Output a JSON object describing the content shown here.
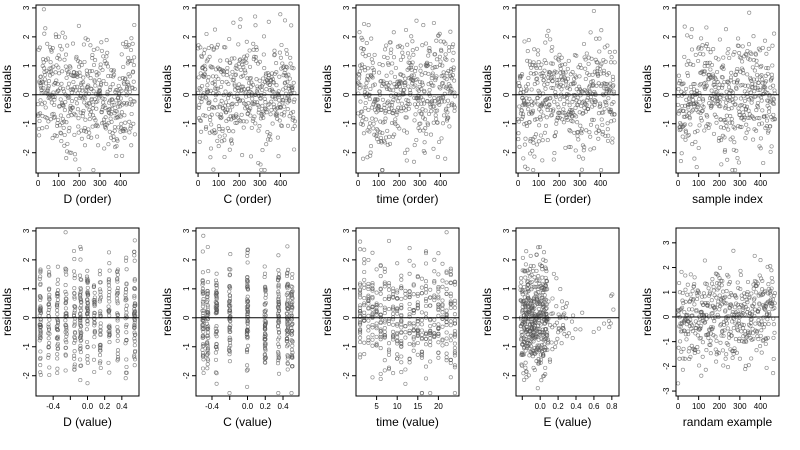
{
  "figure": {
    "point_color": "#555555",
    "zero_line_color": "#000000"
  },
  "chart_data": [
    {
      "type": "scatter",
      "xlabel": "D (order)",
      "ylabel": "residuals",
      "xlim": [
        -10,
        490
      ],
      "ylim": [
        -2.7,
        3.1
      ],
      "xticks": [
        {
          "v": 0,
          "t": "0"
        },
        {
          "v": 100,
          "t": "100"
        },
        {
          "v": 200,
          "t": "200"
        },
        {
          "v": 300,
          "t": "300"
        },
        {
          "v": 400,
          "t": "400"
        }
      ],
      "yticks": [
        {
          "v": -2,
          "t": "-2"
        },
        {
          "v": -1,
          "t": "-1"
        },
        {
          "v": 0,
          "t": "0"
        },
        {
          "v": 1,
          "t": "1"
        },
        {
          "v": 2,
          "t": "2"
        },
        {
          "v": 3,
          "t": "3"
        }
      ],
      "zero_line": 0,
      "points": {
        "n": 480,
        "x": "order 0-470",
        "y": "residuals, approx. -2.6 to 2.9"
      }
    },
    {
      "type": "scatter",
      "xlabel": "C (order)",
      "ylabel": "residuals",
      "xlim": [
        -10,
        490
      ],
      "ylim": [
        -2.7,
        3.1
      ],
      "xticks": [
        {
          "v": 0,
          "t": "0"
        },
        {
          "v": 100,
          "t": "100"
        },
        {
          "v": 200,
          "t": "200"
        },
        {
          "v": 300,
          "t": "300"
        },
        {
          "v": 400,
          "t": "400"
        }
      ],
      "yticks": [
        {
          "v": -2,
          "t": "-2"
        },
        {
          "v": -1,
          "t": "-1"
        },
        {
          "v": 0,
          "t": "0"
        },
        {
          "v": 1,
          "t": "1"
        },
        {
          "v": 2,
          "t": "2"
        },
        {
          "v": 3,
          "t": "3"
        }
      ],
      "zero_line": 0,
      "points": {
        "n": 480,
        "x": "order 0-470",
        "y": "residuals, approx. -2.6 to 2.9"
      }
    },
    {
      "type": "scatter",
      "xlabel": "time (order)",
      "ylabel": "residuals",
      "xlim": [
        -10,
        490
      ],
      "ylim": [
        -2.7,
        3.1
      ],
      "xticks": [
        {
          "v": 0,
          "t": "0"
        },
        {
          "v": 100,
          "t": "100"
        },
        {
          "v": 200,
          "t": "200"
        },
        {
          "v": 300,
          "t": "300"
        },
        {
          "v": 400,
          "t": "400"
        }
      ],
      "yticks": [
        {
          "v": -2,
          "t": "-2"
        },
        {
          "v": -1,
          "t": "-1"
        },
        {
          "v": 0,
          "t": "0"
        },
        {
          "v": 1,
          "t": "1"
        },
        {
          "v": 2,
          "t": "2"
        },
        {
          "v": 3,
          "t": "3"
        }
      ],
      "zero_line": 0,
      "points": {
        "n": 480,
        "x": "order 0-470",
        "y": "residuals, approx. -2.6 to 2.9"
      }
    },
    {
      "type": "scatter",
      "xlabel": "E (order)",
      "ylabel": "residuals",
      "xlim": [
        -10,
        490
      ],
      "ylim": [
        -2.7,
        3.1
      ],
      "xticks": [
        {
          "v": 0,
          "t": "0"
        },
        {
          "v": 100,
          "t": "100"
        },
        {
          "v": 200,
          "t": "200"
        },
        {
          "v": 300,
          "t": "300"
        },
        {
          "v": 400,
          "t": "400"
        }
      ],
      "yticks": [
        {
          "v": -2,
          "t": "-2"
        },
        {
          "v": -1,
          "t": "-1"
        },
        {
          "v": 0,
          "t": "0"
        },
        {
          "v": 1,
          "t": "1"
        },
        {
          "v": 2,
          "t": "2"
        },
        {
          "v": 3,
          "t": "3"
        }
      ],
      "zero_line": 0,
      "points": {
        "n": 480,
        "x": "order 0-470",
        "y": "residuals, approx. -2.6 to 2.9"
      }
    },
    {
      "type": "scatter",
      "xlabel": "sample index",
      "ylabel": "residuals",
      "xlim": [
        -10,
        490
      ],
      "ylim": [
        -2.7,
        3.1
      ],
      "xticks": [
        {
          "v": 0,
          "t": "0"
        },
        {
          "v": 100,
          "t": "100"
        },
        {
          "v": 200,
          "t": "200"
        },
        {
          "v": 300,
          "t": "300"
        },
        {
          "v": 400,
          "t": "400"
        }
      ],
      "yticks": [
        {
          "v": -2,
          "t": "-2"
        },
        {
          "v": -1,
          "t": "-1"
        },
        {
          "v": 0,
          "t": "0"
        },
        {
          "v": 1,
          "t": "1"
        },
        {
          "v": 2,
          "t": "2"
        },
        {
          "v": 3,
          "t": "3"
        }
      ],
      "zero_line": 0,
      "points": {
        "n": 480,
        "x": "sample index 0-470",
        "y": "residuals, approx. -2.6 to 2.9"
      }
    },
    {
      "type": "scatter",
      "xlabel": "D (value)",
      "ylabel": "residuals",
      "xlim": [
        -0.6,
        0.6
      ],
      "ylim": [
        -2.7,
        3.1
      ],
      "xticks": [
        {
          "v": -0.4,
          "t": "-0.4"
        },
        {
          "v": -0.2,
          "t": ""
        },
        {
          "v": 0.0,
          "t": "0.0"
        },
        {
          "v": 0.2,
          "t": "0.2"
        },
        {
          "v": 0.4,
          "t": "0.4"
        }
      ],
      "yticks": [
        {
          "v": -2,
          "t": "-2"
        },
        {
          "v": -1,
          "t": "-1"
        },
        {
          "v": 0,
          "t": "0"
        },
        {
          "v": 1,
          "t": "1"
        },
        {
          "v": 2,
          "t": "2"
        },
        {
          "v": 3,
          "t": "3"
        }
      ],
      "zero_line": 0,
      "points": {
        "n": 480,
        "x": "discrete levels from -0.55 to 0.55",
        "y": "residuals, approx. -2.6 to 2.9"
      }
    },
    {
      "type": "scatter",
      "xlabel": "C (value)",
      "ylabel": "residuals",
      "xlim": [
        -0.58,
        0.58
      ],
      "ylim": [
        -2.7,
        3.1
      ],
      "xticks": [
        {
          "v": -0.4,
          "t": "-0.4"
        },
        {
          "v": -0.2,
          "t": ""
        },
        {
          "v": 0.0,
          "t": "0.0"
        },
        {
          "v": 0.2,
          "t": "0.2"
        },
        {
          "v": 0.4,
          "t": "0.4"
        }
      ],
      "yticks": [
        {
          "v": -2,
          "t": "-2"
        },
        {
          "v": -1,
          "t": "-1"
        },
        {
          "v": 0,
          "t": "0"
        },
        {
          "v": 1,
          "t": "1"
        },
        {
          "v": 2,
          "t": "2"
        },
        {
          "v": 3,
          "t": "3"
        }
      ],
      "zero_line": 0,
      "points": {
        "n": 480,
        "x": "discrete levels from -0.5 to 0.5",
        "y": "residuals, approx. -2.6 to 2.9"
      }
    },
    {
      "type": "scatter",
      "xlabel": "time (value)",
      "ylabel": "residuals",
      "xlim": [
        0,
        25
      ],
      "ylim": [
        -2.7,
        3.1
      ],
      "xticks": [
        {
          "v": 5,
          "t": "5"
        },
        {
          "v": 10,
          "t": "10"
        },
        {
          "v": 15,
          "t": "15"
        },
        {
          "v": 20,
          "t": "20"
        }
      ],
      "yticks": [
        {
          "v": -2,
          "t": "-2"
        },
        {
          "v": -1,
          "t": "-1"
        },
        {
          "v": 0,
          "t": "0"
        },
        {
          "v": 1,
          "t": "1"
        },
        {
          "v": 2,
          "t": "2"
        },
        {
          "v": 3,
          "t": "3"
        }
      ],
      "zero_line": 0,
      "points": {
        "n": 480,
        "x": "integer times 1-24",
        "y": "residuals, approx. -2.6 to 2.9"
      }
    },
    {
      "type": "scatter",
      "xlabel": "E (value)",
      "ylabel": "residuals",
      "xlim": [
        -0.27,
        0.88
      ],
      "ylim": [
        -2.7,
        3.1
      ],
      "xticks": [
        {
          "v": -0.2,
          "t": ""
        },
        {
          "v": 0.0,
          "t": "0.0"
        },
        {
          "v": 0.2,
          "t": "0.2"
        },
        {
          "v": 0.4,
          "t": "0.4"
        },
        {
          "v": 0.6,
          "t": "0.6"
        },
        {
          "v": 0.8,
          "t": "0.8"
        }
      ],
      "yticks": [
        {
          "v": -2,
          "t": "-2"
        },
        {
          "v": -1,
          "t": "-1"
        },
        {
          "v": 0,
          "t": "0"
        },
        {
          "v": 1,
          "t": "1"
        },
        {
          "v": 2,
          "t": "2"
        },
        {
          "v": 3,
          "t": "3"
        }
      ],
      "zero_line": 0,
      "points": {
        "n": 480,
        "x": "skewed values, dense near -0.2 to 0.1, sparse up to 0.82",
        "y": "residuals, approx. -2.6 to 2.9"
      }
    },
    {
      "type": "scatter",
      "xlabel": "randam example",
      "ylabel": "residuals",
      "xlim": [
        -10,
        490
      ],
      "ylim": [
        -3.2,
        3.6
      ],
      "xticks": [
        {
          "v": 0,
          "t": "0"
        },
        {
          "v": 100,
          "t": "100"
        },
        {
          "v": 200,
          "t": "200"
        },
        {
          "v": 300,
          "t": "300"
        },
        {
          "v": 400,
          "t": "400"
        }
      ],
      "yticks": [
        {
          "v": -3,
          "t": "-3"
        },
        {
          "v": -2,
          "t": "-2"
        },
        {
          "v": -1,
          "t": "-1"
        },
        {
          "v": 0,
          "t": "0"
        },
        {
          "v": 1,
          "t": "1"
        },
        {
          "v": 2,
          "t": "2"
        },
        {
          "v": 3,
          "t": "3"
        }
      ],
      "zero_line": 0,
      "points": {
        "n": 480,
        "x": "index 0-470",
        "y": "random normal residuals, approx. -3 to 3.3"
      }
    }
  ]
}
